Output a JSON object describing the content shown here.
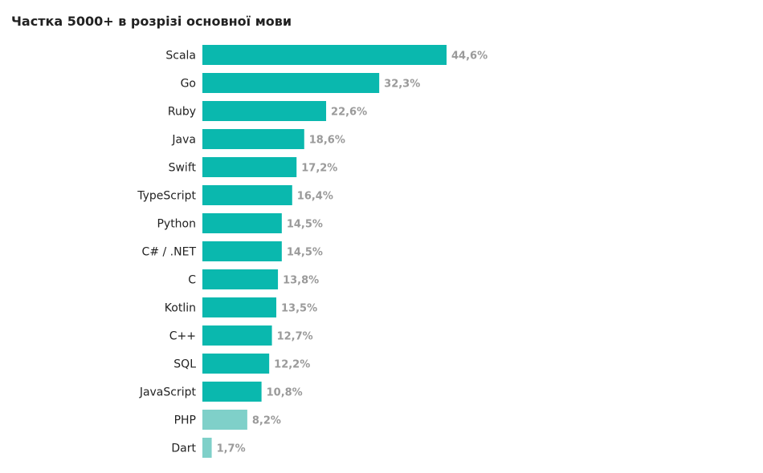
{
  "chart_data": {
    "type": "bar",
    "orientation": "horizontal",
    "title": "Частка 5000+ в розрізі основної мови",
    "xlabel": "",
    "ylabel": "",
    "xlim": [
      0,
      44.6
    ],
    "grid": false,
    "categories": [
      "Scala",
      "Go",
      "Ruby",
      "Java",
      "Swift",
      "TypeScript",
      "Python",
      "C# / .NET",
      "C",
      "Kotlin",
      "C++",
      "SQL",
      "JavaScript",
      "PHP",
      "Dart"
    ],
    "values": [
      44.6,
      32.3,
      22.6,
      18.6,
      17.2,
      16.4,
      14.5,
      14.5,
      13.8,
      13.5,
      12.7,
      12.2,
      10.8,
      8.2,
      1.7
    ],
    "value_labels": [
      "44,6%",
      "32,3%",
      "22,6%",
      "18,6%",
      "17,2%",
      "16,4%",
      "14,5%",
      "14,5%",
      "13,8%",
      "13,5%",
      "12,7%",
      "12,2%",
      "10,8%",
      "8,2%",
      "1,7%"
    ],
    "highlighted": [
      true,
      true,
      true,
      true,
      true,
      true,
      true,
      true,
      true,
      true,
      true,
      true,
      true,
      false,
      false
    ]
  },
  "colors": {
    "bar": "#0ab8ae",
    "bar_muted": "#7fd0c9",
    "value_text": "#9a9a9a",
    "label_text": "#222222"
  }
}
